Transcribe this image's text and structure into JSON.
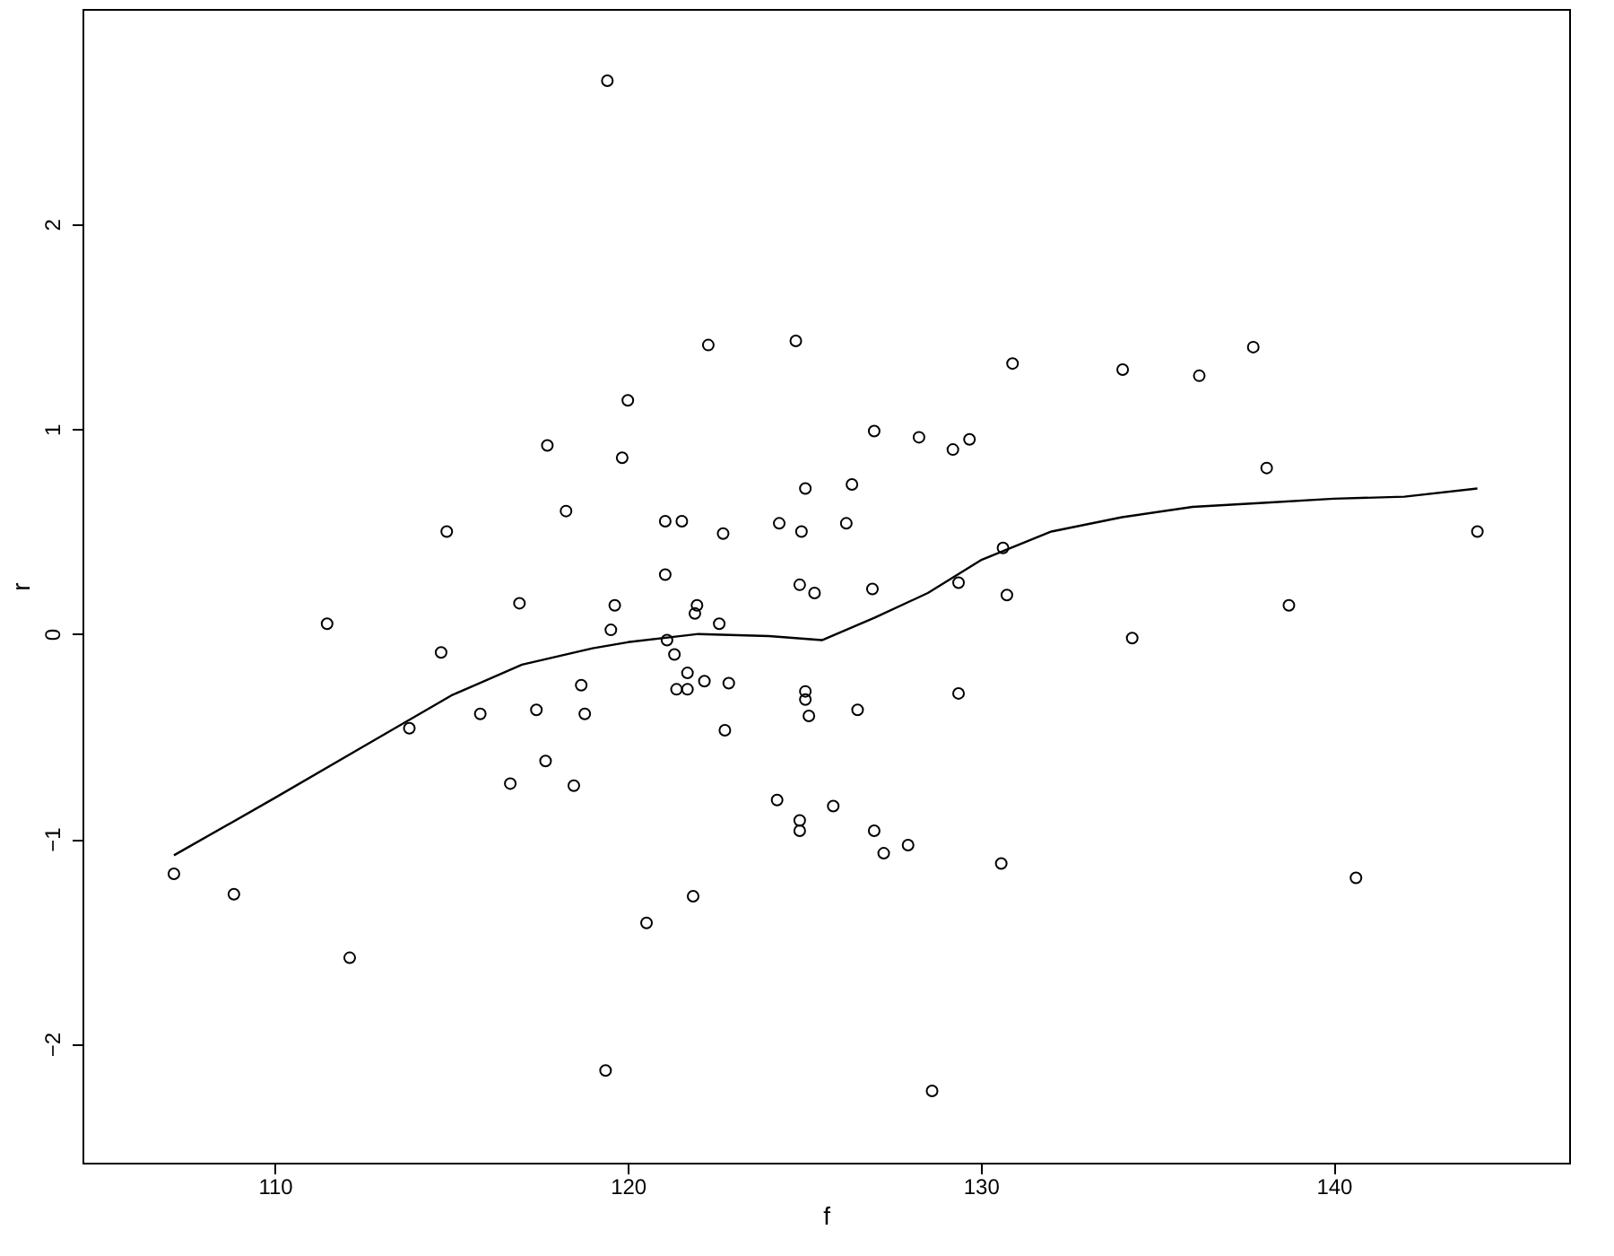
{
  "chart_data": {
    "type": "scatter",
    "xlabel": "f",
    "ylabel": "r",
    "xlim": [
      104.55,
      146.67
    ],
    "ylim": [
      -2.58,
      3.05
    ],
    "xticks": [
      110,
      120,
      130,
      140
    ],
    "yticks": [
      -2,
      -1,
      0,
      1,
      2
    ],
    "grid": false,
    "series": [
      {
        "color": "#000000",
        "marker": "circle",
        "x": [
          119.42,
          107.14,
          108.84,
          112.12,
          111.48,
          113.81,
          114.71,
          114.87,
          115.82,
          116.67,
          116.93,
          117.41,
          117.67,
          117.72,
          118.25,
          118.47,
          118.68,
          118.78,
          119.37,
          119.52,
          119.63,
          119.84,
          120.0,
          120.53,
          121.06,
          121.06,
          121.11,
          121.32,
          121.38,
          121.53,
          121.69,
          121.69,
          121.85,
          121.9,
          121.96,
          122.17,
          122.28,
          122.59,
          122.7,
          122.75,
          122.86,
          124.23,
          124.29,
          124.76,
          124.87,
          124.87,
          124.87,
          124.92,
          125.03,
          125.03,
          125.03,
          125.13,
          125.29,
          125.82,
          126.19,
          126.35,
          126.51,
          126.93,
          126.98,
          126.98,
          127.25,
          127.94,
          128.25,
          128.62,
          129.21,
          129.37,
          129.37,
          129.68,
          130.58,
          130.63,
          130.74,
          130.9,
          134.02,
          134.29,
          136.19,
          137.72,
          138.1,
          138.73,
          140.63,
          144.07
        ],
        "values": [
          2.7,
          -1.17,
          -1.27,
          -1.58,
          0.05,
          -0.46,
          -0.09,
          0.5,
          -0.39,
          -0.73,
          0.15,
          -0.37,
          -0.62,
          0.92,
          0.6,
          -0.74,
          -0.25,
          -0.39,
          -2.13,
          0.02,
          0.14,
          0.86,
          1.14,
          -1.41,
          0.55,
          0.29,
          -0.03,
          -0.1,
          -0.27,
          0.55,
          -0.19,
          -0.27,
          -1.28,
          0.1,
          0.14,
          -0.23,
          1.41,
          0.05,
          0.49,
          -0.47,
          -0.24,
          -0.81,
          0.54,
          1.43,
          0.24,
          -0.96,
          -0.91,
          0.5,
          0.71,
          -0.28,
          -0.32,
          -0.4,
          0.2,
          -0.84,
          0.54,
          0.73,
          -0.37,
          0.22,
          0.99,
          -0.96,
          -1.07,
          -1.03,
          0.96,
          -2.23,
          0.9,
          0.25,
          -0.29,
          0.95,
          -1.12,
          0.42,
          0.19,
          1.32,
          1.29,
          -0.02,
          1.26,
          1.4,
          0.81,
          0.14,
          -1.19,
          0.5
        ]
      },
      {
        "type": "line",
        "color": "#000000",
        "marker": "none",
        "x": [
          107.14,
          110,
          112.5,
          115,
          117,
          119,
          120,
          122,
          124,
          125.5,
          127,
          128.5,
          130,
          132,
          134,
          136,
          138,
          140,
          142,
          144.07
        ],
        "values": [
          -1.08,
          -0.8,
          -0.55,
          -0.3,
          -0.15,
          -0.07,
          -0.04,
          0.0,
          -0.01,
          -0.03,
          0.08,
          0.2,
          0.36,
          0.5,
          0.57,
          0.62,
          0.64,
          0.66,
          0.67,
          0.71
        ]
      }
    ]
  }
}
